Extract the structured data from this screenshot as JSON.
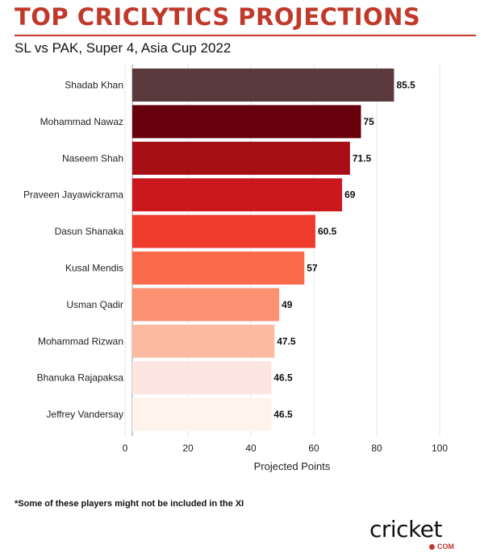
{
  "header": {
    "title": "TOP CRICLYTICS PROJECTIONS",
    "subtitle": "SL vs PAK, Super 4, Asia Cup 2022"
  },
  "footnote": "*Some of these players might not be included in the XI",
  "logo": {
    "word": "cricket",
    "suffix": "COM",
    "accent_color": "#c0392b"
  },
  "colors": {
    "title": "#c0392b",
    "grid": "#e6e6e6",
    "axis": "#9a9a9a"
  },
  "chart_data": {
    "type": "bar",
    "orientation": "horizontal",
    "title": "",
    "xlabel": "Projected Points",
    "ylabel": "",
    "xlim": [
      0,
      100
    ],
    "xticks": [
      0,
      20,
      40,
      60,
      80,
      100
    ],
    "grid": true,
    "legend": "none",
    "categories": [
      "Shadab Khan",
      "Mohammad Nawaz",
      "Naseem Shah",
      "Praveen Jayawickrama",
      "Dasun Shanaka",
      "Kusal Mendis",
      "Usman Qadir",
      "Mohammad Rizwan",
      "Bhanuka Rajapaksa",
      "Jeffrey Vandersay"
    ],
    "values": [
      85.5,
      75,
      71.5,
      69,
      60.5,
      57,
      49,
      47.5,
      46.5,
      46.5
    ],
    "value_labels": [
      "85.5",
      "75",
      "71.5",
      "69",
      "60.5",
      "57",
      "49",
      "47.5",
      "46.5",
      "46.5"
    ],
    "bar_colors": [
      "#5b3a3e",
      "#67000d",
      "#a50f15",
      "#cb181d",
      "#ef3b2c",
      "#fb6a4a",
      "#fc9272",
      "#fcbba1",
      "#fde6e2",
      "#fff3ec"
    ]
  }
}
